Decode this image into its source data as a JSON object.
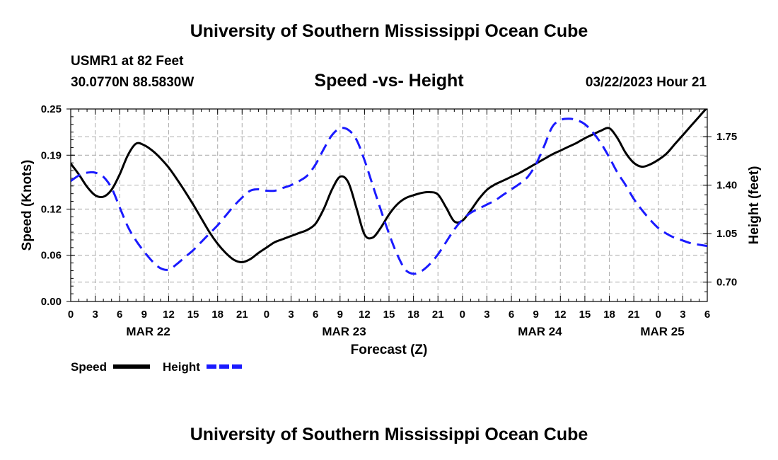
{
  "header": {
    "title": "University of Southern Mississippi Ocean Cube",
    "station": "USMR1 at 82 Feet",
    "coords": "30.0770N  88.5830W",
    "subtitle": "Speed -vs- Height",
    "datetime": "03/22/2023 Hour 21"
  },
  "footer": {
    "title": "University of Southern Mississippi Ocean Cube"
  },
  "chart_data": {
    "type": "line",
    "title": "Speed -vs- Height",
    "xlabel": "Forecast (Z)",
    "ylabel": "Speed (Knots)",
    "y2label": "Height (feet)",
    "x_range_hours": [
      0,
      78
    ],
    "x_tick_step_hours": 3,
    "x_tick_labels": [
      "0",
      "3",
      "6",
      "9",
      "12",
      "15",
      "18",
      "21",
      "0",
      "3",
      "6",
      "9",
      "12",
      "15",
      "18",
      "21",
      "0",
      "3",
      "6",
      "9",
      "12",
      "15",
      "18",
      "21",
      "0",
      "3",
      "6"
    ],
    "date_labels": [
      {
        "label": "MAR 22",
        "hour": 9.5
      },
      {
        "label": "MAR 23",
        "hour": 33.5
      },
      {
        "label": "MAR 24",
        "hour": 57.5
      },
      {
        "label": "MAR 25",
        "hour": 72.5
      }
    ],
    "ylim": [
      0,
      0.25
    ],
    "yticks": [
      0.0,
      0.06,
      0.12,
      0.19,
      0.25
    ],
    "ytick_labels": [
      "0.00",
      "0.06",
      "0.12",
      "0.19",
      "0.25"
    ],
    "y2lim": [
      0.56,
      1.95
    ],
    "y2ticks": [
      0.7,
      1.05,
      1.4,
      1.75
    ],
    "y2tick_labels": [
      "0.70",
      "1.05",
      "1.40",
      "1.75"
    ],
    "grid": true,
    "legend_position": "bottom-left",
    "series": [
      {
        "name": "Speed",
        "axis": "left",
        "color": "#000000",
        "style": "solid",
        "x": [
          0,
          1,
          2,
          3,
          4,
          5,
          6,
          7,
          8,
          9,
          10,
          11,
          12,
          13,
          14,
          15,
          16,
          17,
          18,
          19,
          20,
          21,
          22,
          23,
          24,
          25,
          26,
          27,
          28,
          29,
          30,
          31,
          32,
          33,
          34,
          35,
          36,
          37,
          38,
          39,
          40,
          41,
          42,
          43,
          44,
          45,
          46,
          47,
          48,
          49,
          50,
          51,
          52,
          53,
          54,
          55,
          56,
          57,
          58,
          59,
          60,
          61,
          62,
          63,
          64,
          65,
          66,
          67,
          68,
          69,
          70,
          71,
          72,
          73,
          74,
          75,
          76,
          77,
          78
        ],
        "values": [
          0.179,
          0.165,
          0.149,
          0.138,
          0.136,
          0.145,
          0.165,
          0.19,
          0.205,
          0.203,
          0.196,
          0.186,
          0.174,
          0.159,
          0.143,
          0.126,
          0.108,
          0.09,
          0.075,
          0.063,
          0.054,
          0.051,
          0.055,
          0.063,
          0.07,
          0.077,
          0.081,
          0.085,
          0.089,
          0.093,
          0.101,
          0.12,
          0.145,
          0.162,
          0.155,
          0.122,
          0.087,
          0.083,
          0.096,
          0.113,
          0.126,
          0.134,
          0.138,
          0.141,
          0.142,
          0.139,
          0.122,
          0.104,
          0.105,
          0.118,
          0.133,
          0.145,
          0.152,
          0.157,
          0.162,
          0.167,
          0.173,
          0.179,
          0.185,
          0.191,
          0.196,
          0.201,
          0.206,
          0.212,
          0.217,
          0.222,
          0.225,
          0.212,
          0.193,
          0.18,
          0.175,
          0.178,
          0.184,
          0.192,
          0.204,
          0.216,
          0.228,
          0.24,
          0.252
        ]
      },
      {
        "name": "Height",
        "axis": "right",
        "color": "#1a1aff",
        "style": "dashed",
        "x": [
          0,
          1,
          2,
          3,
          4,
          5,
          6,
          7,
          8,
          9,
          10,
          11,
          12,
          13,
          14,
          15,
          16,
          17,
          18,
          19,
          20,
          21,
          22,
          23,
          24,
          25,
          26,
          27,
          28,
          29,
          30,
          31,
          32,
          33,
          34,
          35,
          36,
          37,
          38,
          39,
          40,
          41,
          42,
          43,
          44,
          45,
          46,
          47,
          48,
          49,
          50,
          51,
          52,
          53,
          54,
          55,
          56,
          57,
          58,
          59,
          60,
          61,
          62,
          63,
          64,
          65,
          66,
          67,
          68,
          69,
          70,
          71,
          72,
          73,
          74,
          75,
          76,
          77,
          78
        ],
        "values": [
          1.43,
          1.47,
          1.49,
          1.49,
          1.46,
          1.38,
          1.24,
          1.1,
          1.0,
          0.92,
          0.85,
          0.8,
          0.79,
          0.83,
          0.88,
          0.93,
          0.99,
          1.05,
          1.11,
          1.18,
          1.25,
          1.31,
          1.36,
          1.37,
          1.36,
          1.36,
          1.38,
          1.4,
          1.43,
          1.47,
          1.55,
          1.66,
          1.76,
          1.81,
          1.8,
          1.73,
          1.58,
          1.4,
          1.22,
          1.05,
          0.9,
          0.79,
          0.76,
          0.78,
          0.83,
          0.9,
          0.99,
          1.08,
          1.15,
          1.2,
          1.23,
          1.26,
          1.29,
          1.33,
          1.37,
          1.41,
          1.46,
          1.55,
          1.68,
          1.82,
          1.87,
          1.88,
          1.87,
          1.84,
          1.78,
          1.7,
          1.6,
          1.49,
          1.4,
          1.3,
          1.22,
          1.15,
          1.09,
          1.05,
          1.02,
          1.0,
          0.98,
          0.97,
          0.96
        ]
      }
    ]
  }
}
